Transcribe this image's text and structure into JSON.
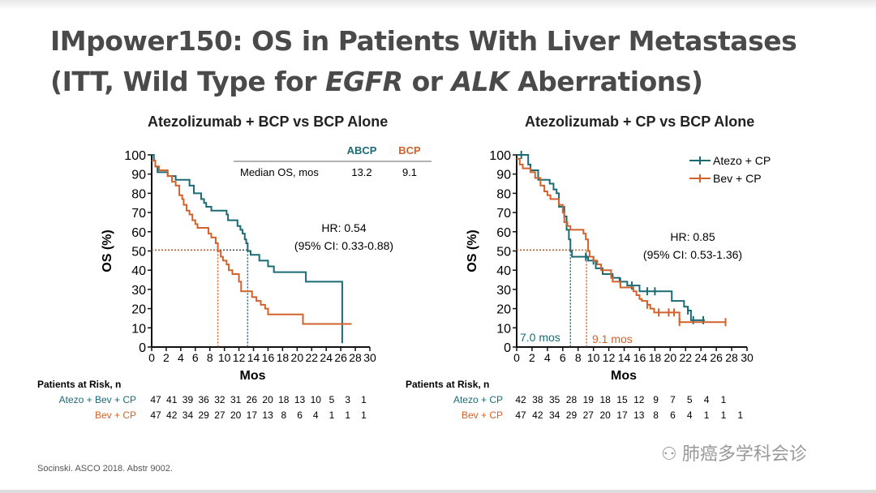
{
  "title": {
    "line1": "IMpower150: OS in Patients With Liver Metastases",
    "line2_a": "(ITT, Wild Type for ",
    "line2_b": "EGFR",
    "line2_c": " or ",
    "line2_d": "ALK",
    "line2_e": " Aberrations)"
  },
  "footer": "Socinski. ASCO 2018. Abstr 9002.",
  "watermark": "肺癌多学科会诊",
  "colors": {
    "teal": "#1b6b75",
    "orange": "#d2622c"
  },
  "chart_data": [
    {
      "type": "line",
      "title": "Atezolizumab + BCP vs BCP Alone",
      "xlabel": "Mos",
      "ylabel": "OS (%)",
      "xlim": [
        0,
        30
      ],
      "ylim": [
        0,
        100
      ],
      "xticks": [
        "0",
        "2",
        "4",
        "6",
        "8",
        "10",
        "12",
        "14",
        "16",
        "18",
        "20",
        "22",
        "24",
        "26",
        "28",
        "30"
      ],
      "yticks": [
        "0",
        "10",
        "20",
        "30",
        "40",
        "50",
        "60",
        "70",
        "80",
        "90",
        "100"
      ],
      "table": {
        "headers": [
          "ABCP",
          "BCP"
        ],
        "row_label": "Median OS, mos",
        "values": [
          "13.2",
          "9.1"
        ]
      },
      "hr": "HR: 0.54",
      "ci": "(95% CI: 0.33-0.88)",
      "medians": [
        13.2,
        9.1
      ],
      "series": [
        {
          "name": "ABCP",
          "color": "teal",
          "points": [
            [
              0,
              100
            ],
            [
              0.3,
              97
            ],
            [
              0.5,
              94
            ],
            [
              0.8,
              91
            ],
            [
              2,
              91
            ],
            [
              2.2,
              89
            ],
            [
              3,
              89
            ],
            [
              3.3,
              87
            ],
            [
              4.8,
              87
            ],
            [
              5.2,
              84
            ],
            [
              5.6,
              84
            ],
            [
              5.8,
              80
            ],
            [
              6.5,
              80
            ],
            [
              6.8,
              77
            ],
            [
              7.2,
              75
            ],
            [
              7.5,
              73
            ],
            [
              8,
              73
            ],
            [
              8.2,
              71
            ],
            [
              10,
              71
            ],
            [
              10.3,
              69
            ],
            [
              10.5,
              66
            ],
            [
              11.5,
              66
            ],
            [
              11.8,
              63
            ],
            [
              12.2,
              61
            ],
            [
              12.5,
              59
            ],
            [
              12.8,
              56
            ],
            [
              13,
              54
            ],
            [
              13.2,
              50
            ],
            [
              13.6,
              48
            ],
            [
              14.6,
              48
            ],
            [
              14.8,
              45
            ],
            [
              15.8,
              45
            ],
            [
              16,
              42
            ],
            [
              16.6,
              42
            ],
            [
              16.8,
              39
            ],
            [
              21,
              39
            ],
            [
              21.2,
              34
            ],
            [
              26.2,
              34
            ],
            [
              26.2,
              2
            ]
          ]
        },
        {
          "name": "BCP",
          "color": "orange",
          "points": [
            [
              0,
              97
            ],
            [
              0.5,
              94
            ],
            [
              1,
              92
            ],
            [
              2,
              92
            ],
            [
              2.2,
              89
            ],
            [
              2.6,
              89
            ],
            [
              2.8,
              86
            ],
            [
              3.3,
              84
            ],
            [
              3.6,
              84
            ],
            [
              3.8,
              79
            ],
            [
              4.2,
              77
            ],
            [
              4.4,
              74
            ],
            [
              4.8,
              71
            ],
            [
              5.2,
              69
            ],
            [
              5.6,
              66
            ],
            [
              6,
              64
            ],
            [
              6.3,
              62
            ],
            [
              7.5,
              62
            ],
            [
              7.8,
              59
            ],
            [
              8.2,
              57
            ],
            [
              8.6,
              57
            ],
            [
              8.8,
              54
            ],
            [
              9.1,
              50
            ],
            [
              9.5,
              47
            ],
            [
              9.8,
              45
            ],
            [
              10.3,
              43
            ],
            [
              10.6,
              40
            ],
            [
              11.1,
              38
            ],
            [
              11.8,
              38
            ],
            [
              12,
              34
            ],
            [
              12.3,
              29
            ],
            [
              13.5,
              29
            ],
            [
              13.8,
              26
            ],
            [
              14.4,
              24
            ],
            [
              15,
              22
            ],
            [
              15.6,
              20
            ],
            [
              16,
              17
            ],
            [
              20.6,
              17
            ],
            [
              20.8,
              12
            ],
            [
              27.5,
              12
            ]
          ]
        }
      ],
      "risk": {
        "label": "Patients at Risk, n",
        "rows": [
          {
            "name": "Atezo + Bev + CP",
            "color": "teal",
            "values": [
              "47",
              "41",
              "39",
              "36",
              "32",
              "31",
              "26",
              "20",
              "18",
              "13",
              "10",
              "5",
              "3",
              "1"
            ]
          },
          {
            "name": "Bev + CP",
            "color": "orange",
            "values": [
              "47",
              "42",
              "34",
              "29",
              "27",
              "20",
              "17",
              "13",
              "8",
              "6",
              "4",
              "1",
              "1",
              "1"
            ]
          }
        ]
      }
    },
    {
      "type": "line",
      "title": "Atezolizumab + CP vs BCP Alone",
      "xlabel": "Mos",
      "ylabel": "OS (%)",
      "xlim": [
        0,
        30
      ],
      "ylim": [
        0,
        100
      ],
      "xticks": [
        "0",
        "2",
        "4",
        "6",
        "8",
        "10",
        "12",
        "14",
        "16",
        "18",
        "20",
        "22",
        "24",
        "26",
        "28",
        "30"
      ],
      "yticks": [
        "0",
        "10",
        "20",
        "30",
        "40",
        "50",
        "60",
        "70",
        "80",
        "90",
        "100"
      ],
      "legend": [
        "Atezo + CP",
        "Bev + CP"
      ],
      "legend_position": "top-right",
      "hr": "HR: 0.85",
      "ci": "(95% CI: 0.53-1.36)",
      "medians": [
        7.0,
        9.1
      ],
      "median_labels": [
        "7.0 mos",
        "9.1 mos"
      ],
      "series": [
        {
          "name": "Atezo + CP",
          "color": "teal",
          "censor": [
            0.6,
            9,
            10,
            13.5,
            15,
            17,
            18,
            22.3,
            23,
            24.3
          ],
          "points": [
            [
              0,
              100
            ],
            [
              1.4,
              100
            ],
            [
              1.5,
              95
            ],
            [
              1.8,
              92
            ],
            [
              2.7,
              92
            ],
            [
              2.8,
              87
            ],
            [
              4,
              87
            ],
            [
              4.3,
              85
            ],
            [
              4.8,
              82
            ],
            [
              5.2,
              80
            ],
            [
              5.5,
              73
            ],
            [
              6,
              73
            ],
            [
              6.2,
              68
            ],
            [
              6.5,
              61
            ],
            [
              6.8,
              56
            ],
            [
              7,
              50
            ],
            [
              7.2,
              47
            ],
            [
              9,
              47
            ],
            [
              9.3,
              45
            ],
            [
              10,
              45
            ],
            [
              10.3,
              41
            ],
            [
              11,
              41
            ],
            [
              11.2,
              38
            ],
            [
              12.3,
              38
            ],
            [
              12.5,
              36
            ],
            [
              13.2,
              36
            ],
            [
              13.4,
              34
            ],
            [
              14.2,
              34
            ],
            [
              14.4,
              32
            ],
            [
              15.8,
              32
            ],
            [
              16,
              29
            ],
            [
              20,
              29
            ],
            [
              20.2,
              24
            ],
            [
              21.6,
              24
            ],
            [
              21.8,
              21
            ],
            [
              22.3,
              19
            ],
            [
              22.7,
              14
            ],
            [
              24.5,
              14
            ]
          ]
        },
        {
          "name": "Bev + CP",
          "color": "orange",
          "censor": [
            17,
            18.5,
            19.8,
            20.5,
            21.2,
            27.2
          ],
          "points": [
            [
              0,
              98
            ],
            [
              0.4,
              95
            ],
            [
              0.8,
              93
            ],
            [
              1.8,
              91
            ],
            [
              2.4,
              88
            ],
            [
              3.1,
              84
            ],
            [
              3.6,
              81
            ],
            [
              4,
              79
            ],
            [
              4.4,
              77
            ],
            [
              5,
              77
            ],
            [
              5.5,
              74
            ],
            [
              6,
              70
            ],
            [
              6.2,
              65
            ],
            [
              6.6,
              63
            ],
            [
              7,
              61
            ],
            [
              8.5,
              61
            ],
            [
              8.7,
              59
            ],
            [
              9,
              56
            ],
            [
              9.3,
              50
            ],
            [
              9.5,
              47
            ],
            [
              10,
              45
            ],
            [
              10.5,
              43
            ],
            [
              11,
              40
            ],
            [
              12,
              40
            ],
            [
              12.3,
              36
            ],
            [
              12.5,
              34
            ],
            [
              13.2,
              34
            ],
            [
              13.5,
              31
            ],
            [
              15,
              31
            ],
            [
              15.2,
              29
            ],
            [
              15.6,
              27
            ],
            [
              16,
              25
            ],
            [
              16.3,
              24
            ],
            [
              17,
              22
            ],
            [
              17.4,
              20
            ],
            [
              17.9,
              18
            ],
            [
              21,
              18
            ],
            [
              21.2,
              13
            ],
            [
              27.2,
              13
            ]
          ]
        }
      ],
      "risk": {
        "label": "Patients at Risk, n",
        "rows": [
          {
            "name": "Atezo + CP",
            "color": "teal",
            "values": [
              "42",
              "38",
              "35",
              "28",
              "19",
              "18",
              "15",
              "12",
              "9",
              "7",
              "5",
              "4",
              "1"
            ]
          },
          {
            "name": "Bev + CP",
            "color": "orange",
            "values": [
              "47",
              "42",
              "34",
              "29",
              "27",
              "20",
              "17",
              "13",
              "8",
              "6",
              "4",
              "1",
              "1",
              "1"
            ]
          }
        ]
      }
    }
  ]
}
